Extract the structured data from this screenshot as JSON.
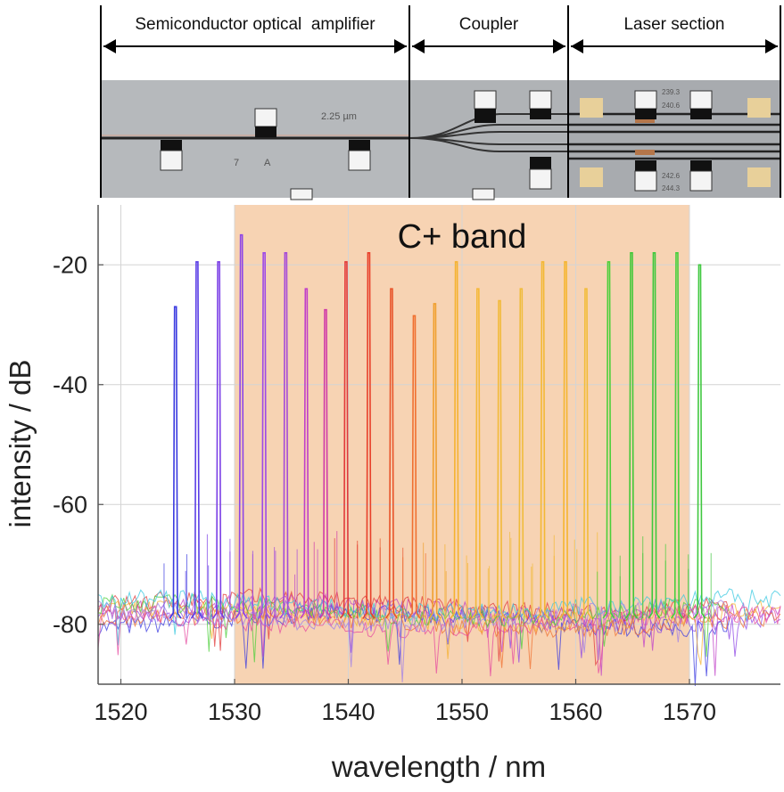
{
  "photo": {
    "sections": [
      {
        "label": "Semiconductor optical  amplifier"
      },
      {
        "label": "Coupler"
      },
      {
        "label": "Laser section"
      }
    ],
    "markings": [
      "2.25 µm",
      "7",
      "A",
      "239.3",
      "240.6",
      "242.6",
      "244.3"
    ]
  },
  "chart_data": {
    "type": "line",
    "xlabel": "wavelength / nm",
    "ylabel": "intensity / dB",
    "xlim": [
      1518,
      1578
    ],
    "ylim": [
      -90,
      -10
    ],
    "xticks": [
      1520,
      1530,
      1540,
      1550,
      1560,
      1570
    ],
    "yticks": [
      -20,
      -40,
      -60,
      -80
    ],
    "xtick_labels": [
      "1520",
      "1530",
      "1540",
      "1550",
      "1560",
      "1570"
    ],
    "ytick_labels": [
      "-20",
      "-40",
      "-60",
      "-80"
    ],
    "grid": true,
    "band": {
      "label": "C+ band",
      "x": [
        1530,
        1570
      ],
      "color": "#f6cba6"
    },
    "noise_floor_db": -78,
    "peaks": [
      {
        "x": 1524.8,
        "y": -27,
        "color": "#3a3ae0"
      },
      {
        "x": 1526.7,
        "y": -19.5,
        "color": "#5a3ee6"
      },
      {
        "x": 1528.6,
        "y": -19.5,
        "color": "#7a3ee6"
      },
      {
        "x": 1530.6,
        "y": -15,
        "color": "#8e45e6"
      },
      {
        "x": 1532.6,
        "y": -18,
        "color": "#9e4ae6"
      },
      {
        "x": 1534.5,
        "y": -18,
        "color": "#a54ad8"
      },
      {
        "x": 1536.3,
        "y": -24,
        "color": "#c040c8"
      },
      {
        "x": 1538.0,
        "y": -27.5,
        "color": "#d03ca8"
      },
      {
        "x": 1539.8,
        "y": -19.5,
        "color": "#e23a3a"
      },
      {
        "x": 1541.8,
        "y": -18,
        "color": "#e8402a"
      },
      {
        "x": 1543.8,
        "y": -24,
        "color": "#e8542a"
      },
      {
        "x": 1545.8,
        "y": -28.5,
        "color": "#f07030"
      },
      {
        "x": 1547.6,
        "y": -26.5,
        "color": "#f0a030"
      },
      {
        "x": 1549.5,
        "y": -19.5,
        "color": "#f5b230"
      },
      {
        "x": 1551.4,
        "y": -24,
        "color": "#f5b838"
      },
      {
        "x": 1553.3,
        "y": -26,
        "color": "#f2ba3a"
      },
      {
        "x": 1555.2,
        "y": -24,
        "color": "#f0bc3c"
      },
      {
        "x": 1557.1,
        "y": -19.5,
        "color": "#f3b834"
      },
      {
        "x": 1559.1,
        "y": -19.5,
        "color": "#f5b530"
      },
      {
        "x": 1560.9,
        "y": -24,
        "color": "#f2bc38"
      },
      {
        "x": 1562.9,
        "y": -19.5,
        "color": "#4ccf3a"
      },
      {
        "x": 1564.9,
        "y": -18,
        "color": "#42c838"
      },
      {
        "x": 1566.9,
        "y": -18,
        "color": "#3ec83c"
      },
      {
        "x": 1568.9,
        "y": -18,
        "color": "#46d03c"
      },
      {
        "x": 1570.9,
        "y": -20,
        "color": "#40c840"
      }
    ]
  }
}
